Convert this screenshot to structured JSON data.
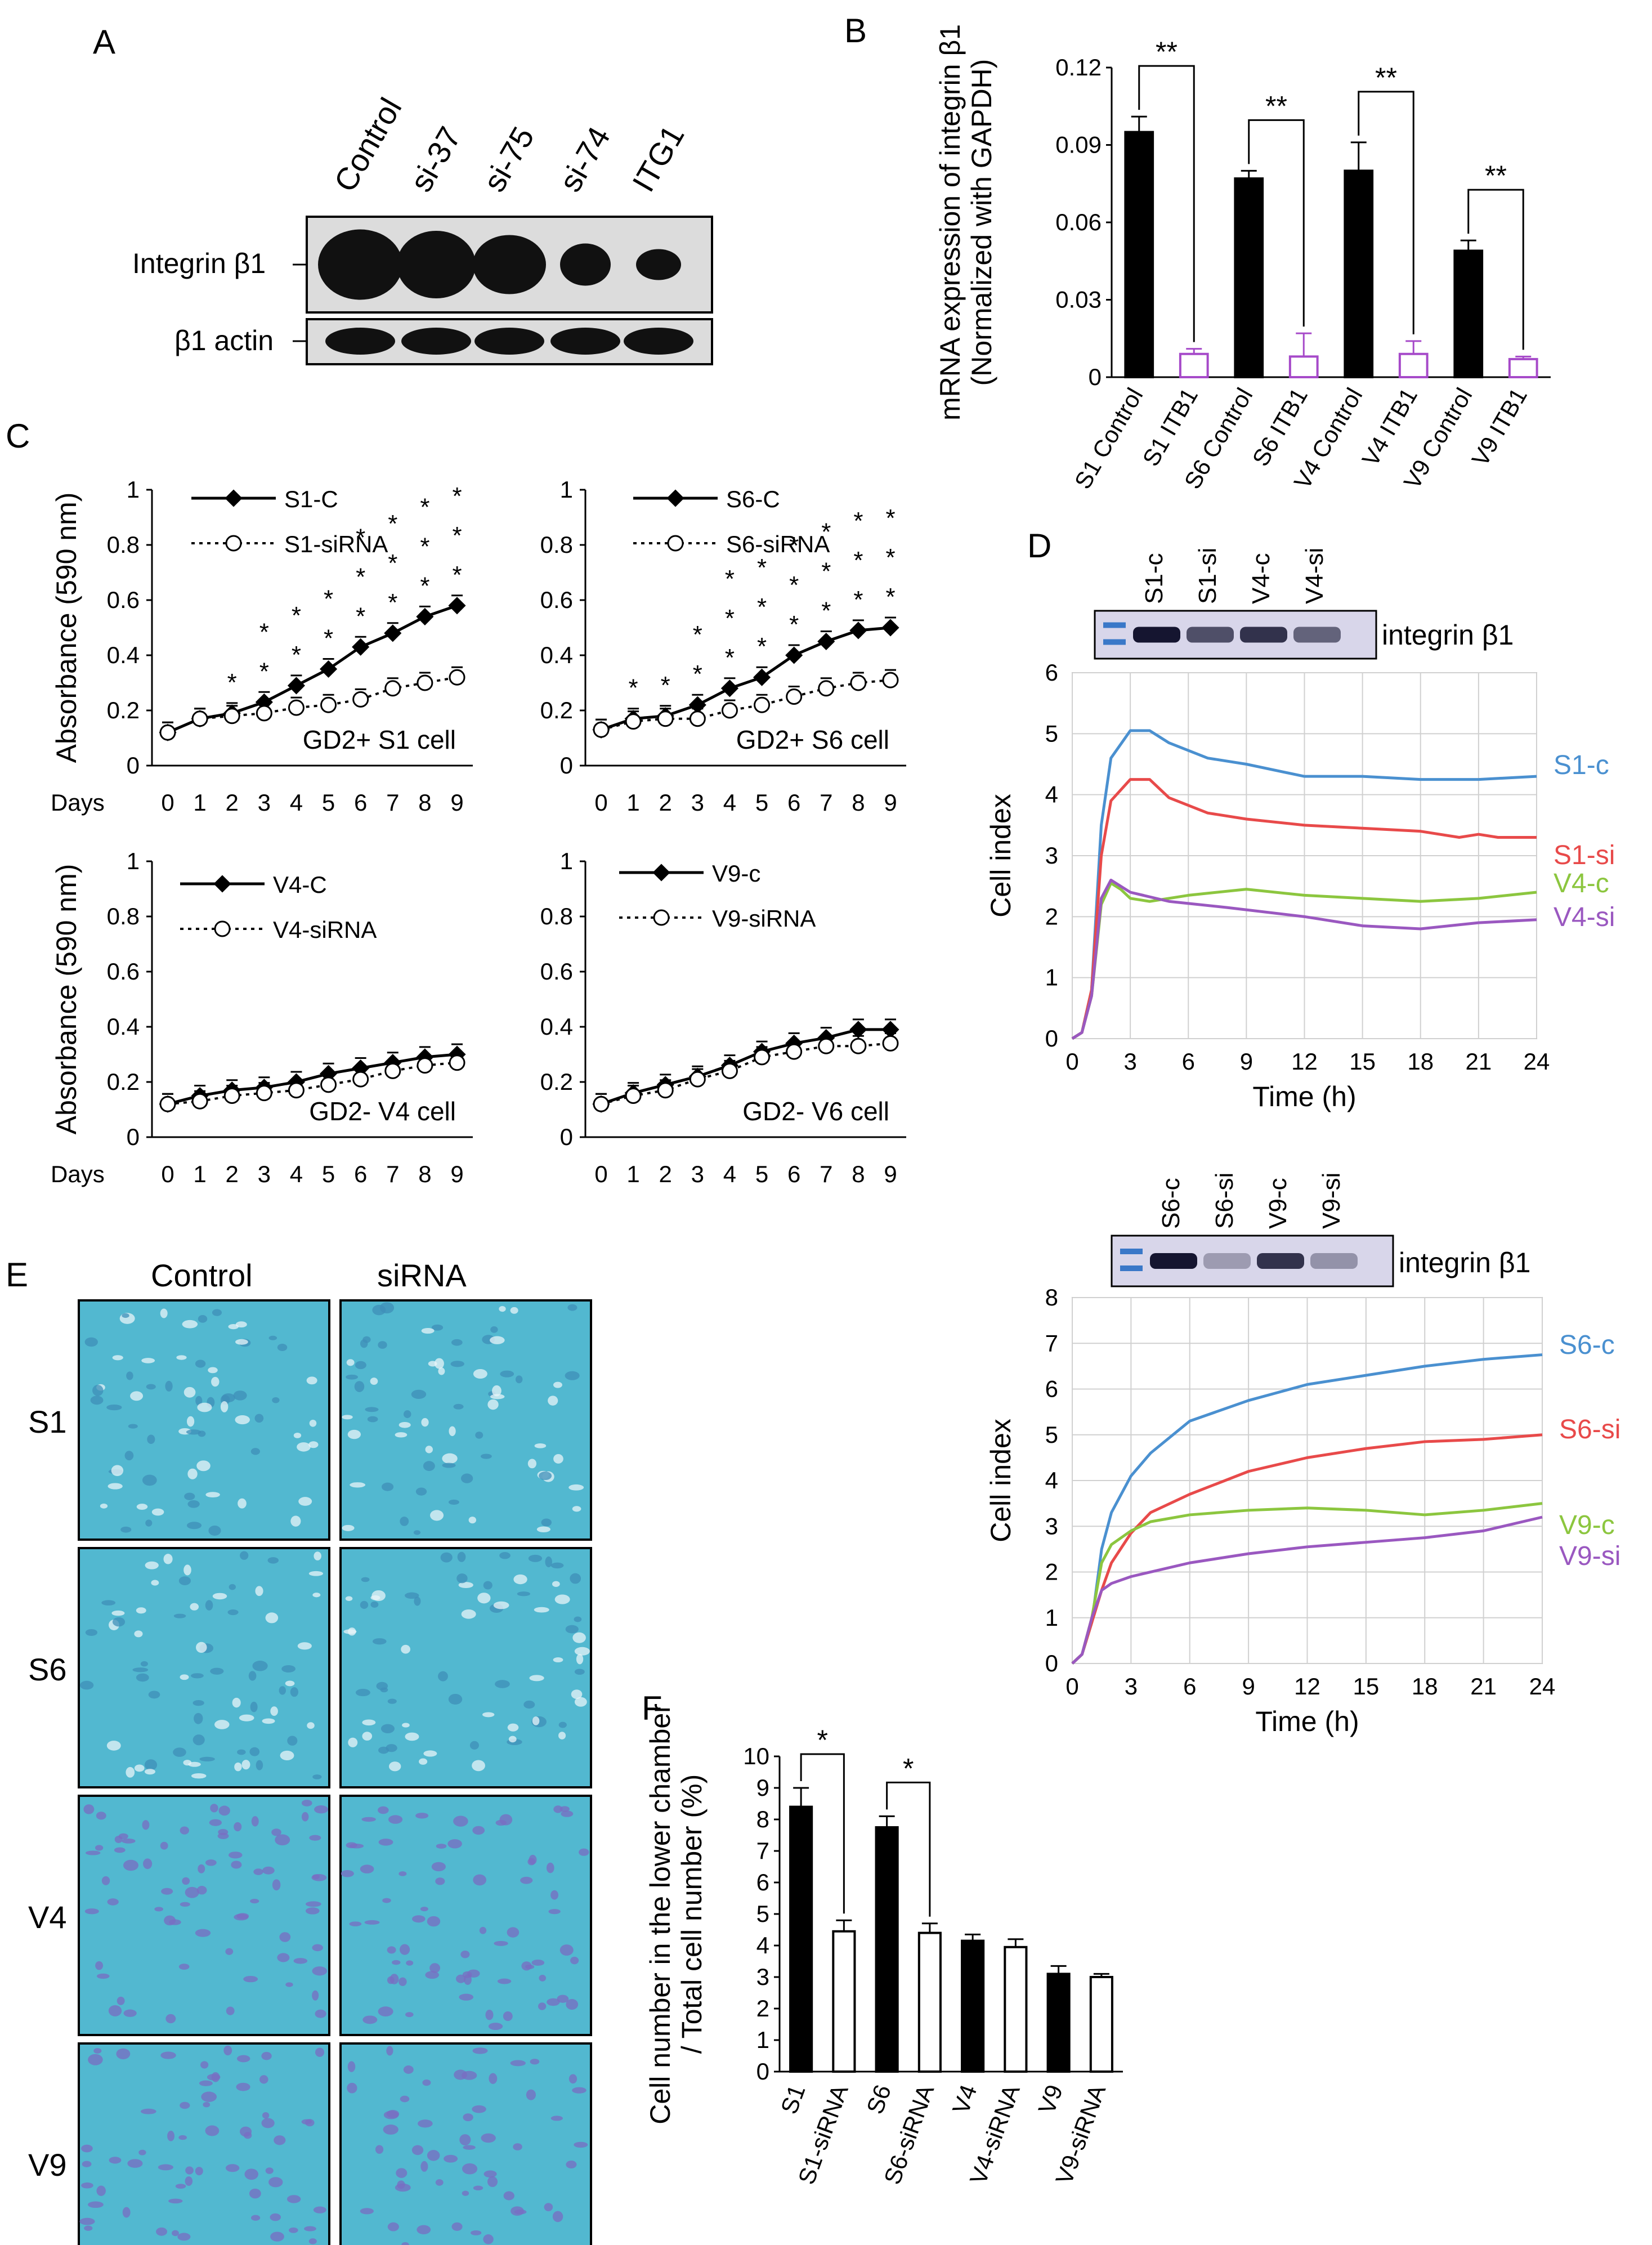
{
  "panels": {
    "A": "A",
    "B": "B",
    "C": "C",
    "D": "D",
    "E": "E",
    "F": "F"
  },
  "blotA": {
    "lanes": [
      "Control",
      "si-37",
      "si-75",
      "si-74",
      "ITG1"
    ],
    "rows": [
      "Integrin β1",
      "β1 actin"
    ],
    "colors": {
      "band": "#111111",
      "bg": "#e2e2e2"
    }
  },
  "blotD1": {
    "lanes": [
      "S1-c",
      "S1-si",
      "V4-c",
      "V4-si"
    ],
    "label": "integrin β1"
  },
  "blotD2": {
    "lanes": [
      "S6-c",
      "S6-si",
      "V9-c",
      "V9-si"
    ],
    "label": "integrin β1"
  },
  "micrographs": {
    "columns": [
      "Control",
      "siRNA"
    ],
    "rows": [
      "S1",
      "S6",
      "V4",
      "V9"
    ],
    "colors": {
      "stain": "#52b8d0",
      "cell": "#7a6cc2"
    }
  },
  "chart_data": [
    {
      "id": "B",
      "type": "bar",
      "title": "",
      "ylabel": [
        "mRNA expression of integrin β1",
        "(Normalized with GAPDH)"
      ],
      "categories": [
        "S1 Control",
        "S1 ITB1",
        "S6 Control",
        "S6 ITB1",
        "V4 Control",
        "V4 ITB1",
        "V9 Control",
        "V9 ITB1"
      ],
      "values": [
        0.095,
        0.009,
        0.077,
        0.008,
        0.08,
        0.009,
        0.049,
        0.007
      ],
      "errors": [
        0.006,
        0.002,
        0.003,
        0.009,
        0.011,
        0.005,
        0.004,
        0.001
      ],
      "fills": [
        "#000000",
        "#ffffff",
        "#000000",
        "#ffffff",
        "#000000",
        "#ffffff",
        "#000000",
        "#ffffff"
      ],
      "outline_treated": "#a64ac9",
      "ylim": [
        0,
        0.12
      ],
      "yticks": [
        "0",
        "0.03",
        "0.06",
        "0.09",
        "0.12"
      ],
      "significance": [
        {
          "pair": [
            0,
            1
          ],
          "label": "**"
        },
        {
          "pair": [
            2,
            3
          ],
          "label": "**"
        },
        {
          "pair": [
            4,
            5
          ],
          "label": "**"
        },
        {
          "pair": [
            6,
            7
          ],
          "label": "**"
        }
      ]
    },
    {
      "id": "C1",
      "type": "line",
      "ylabel": "Absorbance (590 nm)",
      "xlabel": "Days",
      "x": [
        0,
        1,
        2,
        3,
        4,
        5,
        6,
        7,
        8,
        9
      ],
      "ylim": [
        0,
        1
      ],
      "yticks": [
        "0",
        "0.2",
        "0.4",
        "0.6",
        "0.8",
        "1"
      ],
      "annotation": "GD2+ S1 cell",
      "series": [
        {
          "name": "S1-C",
          "values": [
            0.12,
            0.17,
            0.19,
            0.23,
            0.29,
            0.35,
            0.43,
            0.48,
            0.54,
            0.58
          ]
        },
        {
          "name": "S1-siRNA",
          "values": [
            0.12,
            0.17,
            0.18,
            0.19,
            0.21,
            0.22,
            0.24,
            0.28,
            0.3,
            0.32
          ]
        }
      ],
      "stars": [
        0,
        0,
        1,
        2,
        2,
        2,
        3,
        3,
        3,
        3
      ]
    },
    {
      "id": "C2",
      "type": "line",
      "ylabel": "",
      "xlabel": "",
      "x": [
        0,
        1,
        2,
        3,
        4,
        5,
        6,
        7,
        8,
        9
      ],
      "ylim": [
        0,
        1
      ],
      "yticks": [
        "0",
        "0.2",
        "0.4",
        "0.6",
        "0.8",
        "1"
      ],
      "annotation": "GD2+ S6 cell",
      "series": [
        {
          "name": "S6-C",
          "values": [
            0.13,
            0.17,
            0.18,
            0.22,
            0.28,
            0.32,
            0.4,
            0.45,
            0.49,
            0.5
          ]
        },
        {
          "name": "S6-siRNA",
          "values": [
            0.13,
            0.16,
            0.17,
            0.17,
            0.2,
            0.22,
            0.25,
            0.28,
            0.3,
            0.31
          ]
        }
      ],
      "stars": [
        0,
        1,
        1,
        2,
        3,
        3,
        3,
        3,
        3,
        3
      ]
    },
    {
      "id": "C3",
      "type": "line",
      "ylabel": "Absorbance (590 nm)",
      "xlabel": "Days",
      "x": [
        0,
        1,
        2,
        3,
        4,
        5,
        6,
        7,
        8,
        9
      ],
      "ylim": [
        0,
        1
      ],
      "yticks": [
        "0",
        "0.2",
        "0.4",
        "0.6",
        "0.8",
        "1"
      ],
      "annotation": "GD2- V4 cell",
      "series": [
        {
          "name": "V4-C",
          "values": [
            0.12,
            0.15,
            0.17,
            0.18,
            0.2,
            0.23,
            0.25,
            0.27,
            0.29,
            0.3
          ]
        },
        {
          "name": "V4-siRNA",
          "values": [
            0.12,
            0.13,
            0.15,
            0.16,
            0.17,
            0.19,
            0.21,
            0.24,
            0.26,
            0.27
          ]
        }
      ],
      "stars": [
        0,
        0,
        0,
        0,
        0,
        0,
        0,
        0,
        0,
        0
      ]
    },
    {
      "id": "C4",
      "type": "line",
      "ylabel": "",
      "xlabel": "",
      "x": [
        0,
        1,
        2,
        3,
        4,
        5,
        6,
        7,
        8,
        9
      ],
      "ylim": [
        0,
        1
      ],
      "yticks": [
        "0",
        "0.2",
        "0.4",
        "0.6",
        "0.8",
        "1"
      ],
      "annotation": "GD2- V6 cell",
      "series": [
        {
          "name": "V9-c",
          "values": [
            0.12,
            0.16,
            0.19,
            0.22,
            0.26,
            0.31,
            0.34,
            0.36,
            0.39,
            0.39
          ]
        },
        {
          "name": "V9-siRNA",
          "values": [
            0.12,
            0.15,
            0.17,
            0.21,
            0.24,
            0.29,
            0.31,
            0.33,
            0.33,
            0.34
          ]
        }
      ],
      "stars": [
        0,
        0,
        0,
        0,
        0,
        0,
        0,
        0,
        0,
        0
      ]
    },
    {
      "id": "D1",
      "type": "line",
      "ylabel": "Cell index",
      "xlabel": "Time (h)",
      "ylim": [
        0,
        6
      ],
      "xlim": [
        0,
        24
      ],
      "yticks": [
        "0",
        "1",
        "2",
        "3",
        "4",
        "5",
        "6"
      ],
      "xticks": [
        "0",
        "3",
        "6",
        "9",
        "12",
        "15",
        "18",
        "21",
        "24"
      ],
      "series": [
        {
          "name": "S1-c",
          "color": "#4a90d0",
          "points": [
            [
              0,
              0
            ],
            [
              0.5,
              0.1
            ],
            [
              1,
              0.8
            ],
            [
              1.5,
              3.5
            ],
            [
              2,
              4.6
            ],
            [
              3,
              5.05
            ],
            [
              4,
              5.05
            ],
            [
              5,
              4.85
            ],
            [
              7,
              4.6
            ],
            [
              9,
              4.5
            ],
            [
              12,
              4.3
            ],
            [
              15,
              4.3
            ],
            [
              18,
              4.25
            ],
            [
              21,
              4.25
            ],
            [
              24,
              4.3
            ]
          ]
        },
        {
          "name": "S1-si",
          "color": "#e84a4a",
          "points": [
            [
              0,
              0
            ],
            [
              0.5,
              0.1
            ],
            [
              1,
              0.8
            ],
            [
              1.5,
              3.0
            ],
            [
              2,
              3.9
            ],
            [
              3,
              4.25
            ],
            [
              4,
              4.25
            ],
            [
              5,
              3.95
            ],
            [
              7,
              3.7
            ],
            [
              9,
              3.6
            ],
            [
              12,
              3.5
            ],
            [
              15,
              3.45
            ],
            [
              18,
              3.4
            ],
            [
              20,
              3.3
            ],
            [
              21,
              3.35
            ],
            [
              22,
              3.3
            ],
            [
              24,
              3.3
            ]
          ]
        },
        {
          "name": "V4-c",
          "color": "#8cc63f",
          "points": [
            [
              0,
              0
            ],
            [
              0.5,
              0.1
            ],
            [
              1,
              0.7
            ],
            [
              1.5,
              2.2
            ],
            [
              2,
              2.55
            ],
            [
              2.5,
              2.45
            ],
            [
              3,
              2.3
            ],
            [
              4,
              2.25
            ],
            [
              6,
              2.35
            ],
            [
              9,
              2.45
            ],
            [
              12,
              2.35
            ],
            [
              15,
              2.3
            ],
            [
              18,
              2.25
            ],
            [
              21,
              2.3
            ],
            [
              24,
              2.4
            ]
          ]
        },
        {
          "name": "V4-si",
          "color": "#9a58c0",
          "points": [
            [
              0,
              0
            ],
            [
              0.5,
              0.1
            ],
            [
              1,
              0.7
            ],
            [
              1.5,
              2.3
            ],
            [
              2,
              2.6
            ],
            [
              3,
              2.4
            ],
            [
              5,
              2.25
            ],
            [
              8,
              2.15
            ],
            [
              12,
              2.0
            ],
            [
              15,
              1.85
            ],
            [
              18,
              1.8
            ],
            [
              21,
              1.9
            ],
            [
              24,
              1.95
            ]
          ]
        }
      ]
    },
    {
      "id": "D2",
      "type": "line",
      "ylabel": "Cell index",
      "xlabel": "Time (h)",
      "ylim": [
        0,
        8
      ],
      "xlim": [
        0,
        24
      ],
      "yticks": [
        "0",
        "1",
        "2",
        "3",
        "4",
        "5",
        "6",
        "7",
        "8"
      ],
      "xticks": [
        "0",
        "3",
        "6",
        "9",
        "12",
        "15",
        "18",
        "21",
        "24"
      ],
      "series": [
        {
          "name": "S6-c",
          "color": "#4a90d0",
          "points": [
            [
              0,
              0
            ],
            [
              0.5,
              0.2
            ],
            [
              1,
              0.9
            ],
            [
              1.5,
              2.5
            ],
            [
              2,
              3.3
            ],
            [
              3,
              4.1
            ],
            [
              4,
              4.6
            ],
            [
              6,
              5.3
            ],
            [
              9,
              5.75
            ],
            [
              12,
              6.1
            ],
            [
              15,
              6.3
            ],
            [
              18,
              6.5
            ],
            [
              21,
              6.65
            ],
            [
              24,
              6.75
            ]
          ]
        },
        {
          "name": "S6-si",
          "color": "#e84a4a",
          "points": [
            [
              0,
              0
            ],
            [
              0.5,
              0.2
            ],
            [
              1,
              0.9
            ],
            [
              1.5,
              1.6
            ],
            [
              2,
              2.2
            ],
            [
              3,
              2.85
            ],
            [
              4,
              3.3
            ],
            [
              6,
              3.7
            ],
            [
              9,
              4.2
            ],
            [
              12,
              4.5
            ],
            [
              15,
              4.7
            ],
            [
              18,
              4.85
            ],
            [
              21,
              4.9
            ],
            [
              24,
              5.0
            ]
          ]
        },
        {
          "name": "V9-c",
          "color": "#8cc63f",
          "points": [
            [
              0,
              0
            ],
            [
              0.5,
              0.2
            ],
            [
              1,
              1.0
            ],
            [
              1.5,
              2.2
            ],
            [
              2,
              2.6
            ],
            [
              3,
              2.9
            ],
            [
              4,
              3.1
            ],
            [
              6,
              3.25
            ],
            [
              9,
              3.35
            ],
            [
              12,
              3.4
            ],
            [
              15,
              3.35
            ],
            [
              18,
              3.25
            ],
            [
              21,
              3.35
            ],
            [
              24,
              3.5
            ]
          ]
        },
        {
          "name": "V9-si",
          "color": "#9a58c0",
          "points": [
            [
              0,
              0
            ],
            [
              0.5,
              0.2
            ],
            [
              1,
              1.0
            ],
            [
              1.5,
              1.6
            ],
            [
              2,
              1.75
            ],
            [
              3,
              1.9
            ],
            [
              6,
              2.2
            ],
            [
              9,
              2.4
            ],
            [
              12,
              2.55
            ],
            [
              15,
              2.65
            ],
            [
              18,
              2.75
            ],
            [
              21,
              2.9
            ],
            [
              24,
              3.2
            ]
          ]
        }
      ]
    },
    {
      "id": "F",
      "type": "bar",
      "ylabel": [
        "Cell number in the lower chamber",
        "/ Total cell number (%)"
      ],
      "categories": [
        "S1",
        "S1-siRNA",
        "S6",
        "S6-siRNA",
        "V4",
        "V4-siRNA",
        "V9",
        "V9-siRNA"
      ],
      "values": [
        8.4,
        4.45,
        7.75,
        4.4,
        4.15,
        3.95,
        3.1,
        3.0
      ],
      "errors": [
        0.6,
        0.35,
        0.35,
        0.3,
        0.2,
        0.25,
        0.25,
        0.1
      ],
      "fills": [
        "#000000",
        "#ffffff",
        "#000000",
        "#ffffff",
        "#000000",
        "#ffffff",
        "#000000",
        "#ffffff"
      ],
      "ylim": [
        0,
        10
      ],
      "yticks": [
        "0",
        "1",
        "2",
        "3",
        "4",
        "5",
        "6",
        "7",
        "8",
        "9",
        "10"
      ],
      "significance": [
        {
          "pair": [
            0,
            1
          ],
          "label": "*"
        },
        {
          "pair": [
            2,
            3
          ],
          "label": "*"
        }
      ]
    }
  ]
}
